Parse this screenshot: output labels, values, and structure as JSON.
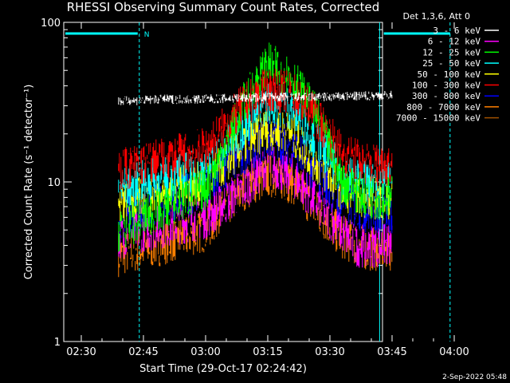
{
  "title": "RHESSI Observing Summary Count Rates, Corrected",
  "timestamp": "2-Sep-2022 05:48",
  "legend_header": "Det 1,3,6, Att 0",
  "chart_data": {
    "type": "line",
    "title": "RHESSI Observing Summary Count Rates, Corrected",
    "xlabel": "Start Time (29-Oct-17 02:24:42)",
    "ylabel": "Corrected Count Rate (s⁻¹ detector⁻¹)",
    "yscale": "log",
    "ylim": [
      1,
      100
    ],
    "xlim_minutes_after_0224": [
      0,
      103
    ],
    "x_ticks": [
      "02:30",
      "02:45",
      "03:00",
      "03:15",
      "03:30",
      "03:45",
      "04:00"
    ],
    "y_ticks": [
      "1",
      "10",
      "100"
    ],
    "grid": false,
    "legend_position": "right",
    "markers": {
      "night_label": "N",
      "night_start": "02:44",
      "night_end_line": "03:42",
      "saa_start": "03:43",
      "saa_end": "03:59",
      "data_start": "02:39",
      "data_end": "03:45"
    },
    "series": [
      {
        "name": "3 - 6 keV",
        "color": "#ffffff",
        "values": [
          [
            2.65,
            32
          ],
          [
            2.85,
            33
          ],
          [
            3.0,
            33
          ],
          [
            3.25,
            34
          ],
          [
            3.5,
            34
          ],
          [
            3.75,
            35
          ]
        ]
      },
      {
        "name": "6 - 12 keV",
        "color": "#ff00ff",
        "values": [
          [
            2.65,
            4.5
          ],
          [
            2.75,
            5
          ],
          [
            3.0,
            6
          ],
          [
            3.15,
            9
          ],
          [
            3.25,
            13
          ],
          [
            3.35,
            11
          ],
          [
            3.5,
            6
          ],
          [
            3.6,
            4
          ],
          [
            3.75,
            4
          ]
        ]
      },
      {
        "name": "12 - 25 keV",
        "color": "#00ff00",
        "values": [
          [
            2.65,
            5
          ],
          [
            2.75,
            6
          ],
          [
            3.0,
            9
          ],
          [
            3.15,
            30
          ],
          [
            3.25,
            55
          ],
          [
            3.35,
            45
          ],
          [
            3.45,
            25
          ],
          [
            3.55,
            10
          ],
          [
            3.65,
            8
          ],
          [
            3.75,
            8
          ]
        ]
      },
      {
        "name": "25 - 50 keV",
        "color": "#00ffff",
        "values": [
          [
            2.65,
            9
          ],
          [
            2.75,
            10
          ],
          [
            3.0,
            12
          ],
          [
            3.15,
            22
          ],
          [
            3.25,
            32
          ],
          [
            3.35,
            29
          ],
          [
            3.45,
            18
          ],
          [
            3.55,
            11
          ],
          [
            3.65,
            10
          ],
          [
            3.75,
            10
          ]
        ]
      },
      {
        "name": "50 - 100 keV",
        "color": "#ffff00",
        "values": [
          [
            2.65,
            7
          ],
          [
            2.75,
            8
          ],
          [
            3.0,
            10
          ],
          [
            3.15,
            17
          ],
          [
            3.25,
            22
          ],
          [
            3.35,
            20
          ],
          [
            3.45,
            13
          ],
          [
            3.55,
            9
          ],
          [
            3.65,
            8
          ],
          [
            3.75,
            8
          ]
        ]
      },
      {
        "name": "100 - 300 keV",
        "color": "#ff0000",
        "values": [
          [
            2.65,
            12
          ],
          [
            2.75,
            13
          ],
          [
            3.0,
            16
          ],
          [
            3.15,
            30
          ],
          [
            3.25,
            38
          ],
          [
            3.35,
            36
          ],
          [
            3.45,
            25
          ],
          [
            3.55,
            15
          ],
          [
            3.65,
            13
          ],
          [
            3.75,
            13
          ]
        ]
      },
      {
        "name": "300 - 800 keV",
        "color": "#0000ff",
        "values": [
          [
            2.65,
            6
          ],
          [
            2.75,
            7
          ],
          [
            3.0,
            9
          ],
          [
            3.15,
            15
          ],
          [
            3.25,
            19
          ],
          [
            3.35,
            17
          ],
          [
            3.45,
            11
          ],
          [
            3.55,
            7.5
          ],
          [
            3.65,
            6.5
          ],
          [
            3.75,
            6.5
          ]
        ]
      },
      {
        "name": "800 - 7000 keV",
        "color": "#ff8000",
        "values": [
          [
            2.65,
            3.5
          ],
          [
            2.75,
            3.8
          ],
          [
            3.0,
            5
          ],
          [
            3.15,
            9
          ],
          [
            3.25,
            11
          ],
          [
            3.35,
            10
          ],
          [
            3.45,
            6.5
          ],
          [
            3.55,
            4.5
          ],
          [
            3.65,
            3.8
          ],
          [
            3.75,
            3.8
          ]
        ]
      },
      {
        "name": "7000 - 15000 keV",
        "color": "#a05000",
        "values": []
      }
    ]
  }
}
